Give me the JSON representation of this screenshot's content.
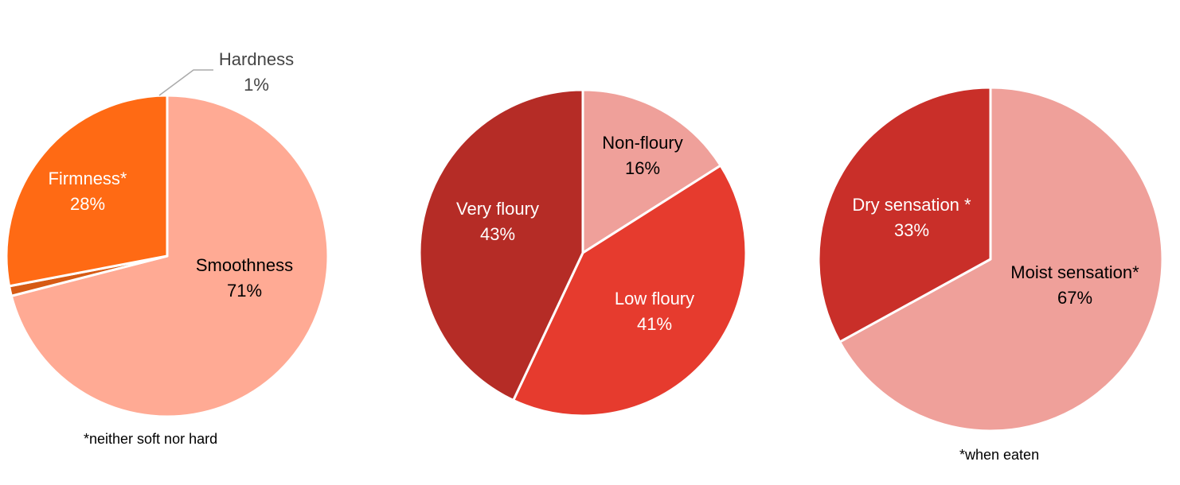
{
  "chart_data": [
    {
      "type": "pie",
      "slices": [
        {
          "label": "Smoothness",
          "value": 71,
          "value_label": "71%",
          "color": "#FFAA94"
        },
        {
          "label": "Hardness",
          "value": 1,
          "value_label": "1%",
          "color": "#D65A14"
        },
        {
          "label": "Firmness*",
          "value": 28,
          "value_label": "28%",
          "color": "#FF6A14"
        }
      ],
      "label_colors": [
        "#000000",
        "#444444",
        "#FFFFFF"
      ],
      "footnote": "*neither soft nor hard"
    },
    {
      "type": "pie",
      "slices": [
        {
          "label": "Non-floury",
          "value": 16,
          "value_label": "16%",
          "color": "#EFA09A"
        },
        {
          "label": "Low floury",
          "value": 41,
          "value_label": "41%",
          "color": "#E63B2E"
        },
        {
          "label": "Very floury",
          "value": 43,
          "value_label": "43%",
          "color": "#B52C26"
        }
      ],
      "label_colors": [
        "#000000",
        "#FFFFFF",
        "#FFFFFF"
      ]
    },
    {
      "type": "pie",
      "slices": [
        {
          "label": "Moist sensation*",
          "value": 67,
          "value_label": "67%",
          "color": "#EFA09A"
        },
        {
          "label": "Dry sensation *",
          "value": 33,
          "value_label": "33%",
          "color": "#C92F29"
        }
      ],
      "label_colors": [
        "#000000",
        "#FFFFFF"
      ],
      "footnote": "*when eaten"
    }
  ]
}
